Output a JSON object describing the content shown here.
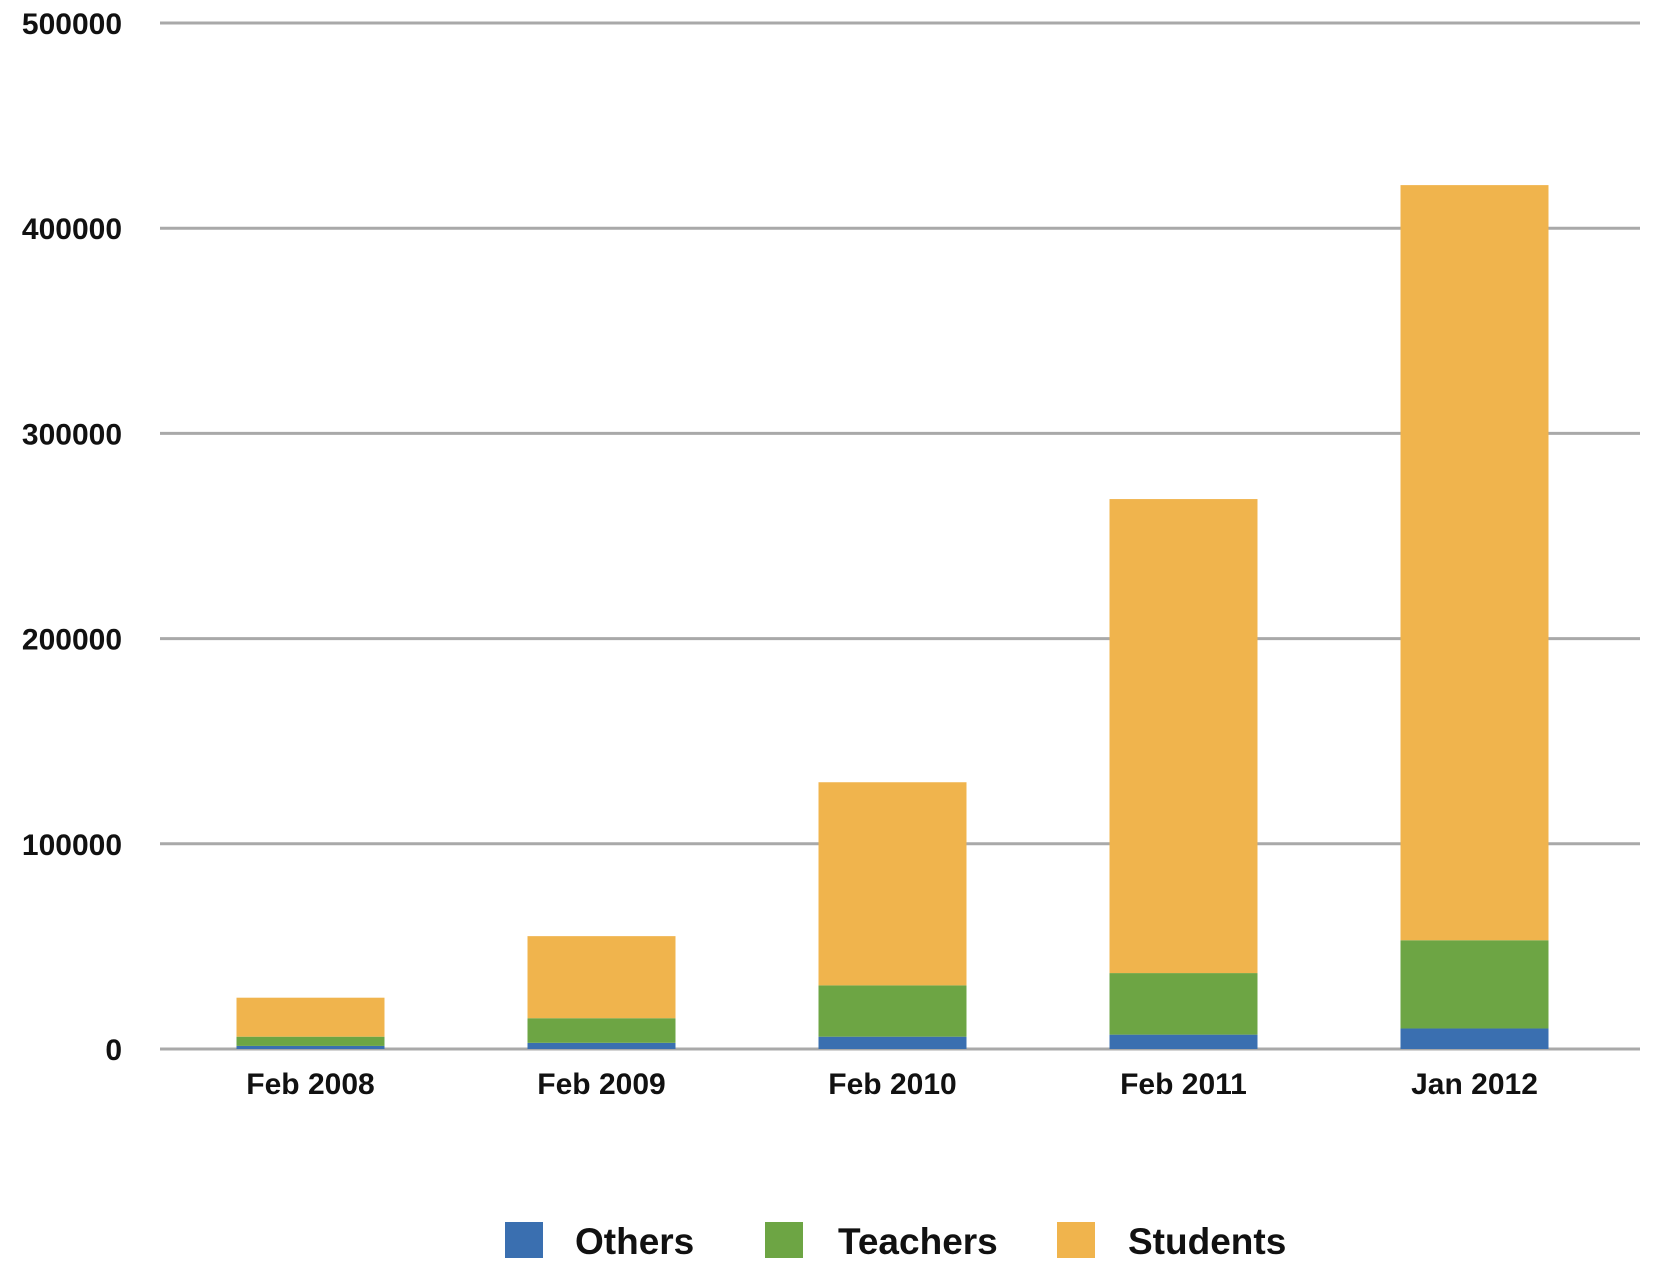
{
  "chart_data": {
    "type": "bar",
    "stacked": true,
    "categories": [
      "Feb 2008",
      "Feb 2009",
      "Feb 2010",
      "Feb 2011",
      "Jan 2012"
    ],
    "series": [
      {
        "name": "Others",
        "color": "#3a6fb0",
        "values": [
          1500,
          3000,
          6000,
          7000,
          10000
        ]
      },
      {
        "name": "Teachers",
        "color": "#6da544",
        "values": [
          4500,
          12000,
          25000,
          30000,
          43000
        ]
      },
      {
        "name": "Students",
        "color": "#f0b44d",
        "values": [
          19000,
          40000,
          99000,
          231000,
          368000
        ]
      }
    ],
    "ylim": [
      0,
      500000
    ],
    "yticks": [
      "0",
      "100000",
      "200000",
      "300000",
      "400000",
      "500000"
    ],
    "grid": true,
    "legend_position": "bottom"
  }
}
